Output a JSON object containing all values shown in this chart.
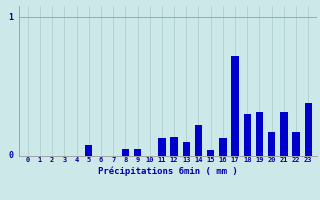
{
  "categories": [
    0,
    1,
    2,
    3,
    4,
    5,
    6,
    7,
    8,
    9,
    10,
    11,
    12,
    13,
    14,
    15,
    16,
    17,
    18,
    19,
    20,
    21,
    22,
    23
  ],
  "values": [
    0.0,
    0.0,
    0.0,
    0.0,
    0.0,
    0.08,
    0.0,
    0.0,
    0.05,
    0.05,
    0.0,
    0.13,
    0.14,
    0.1,
    0.22,
    0.04,
    0.13,
    0.72,
    0.3,
    0.32,
    0.17,
    0.32,
    0.17,
    0.38
  ],
  "bar_color": "#0000cc",
  "background_color": "#cce8e8",
  "grid_color": "#aacccc",
  "text_color": "#0000aa",
  "xlabel": "Précipitations 6min ( mm )",
  "ylim": [
    0,
    1.0
  ],
  "fig_width": 3.2,
  "fig_height": 2.0,
  "dpi": 100
}
